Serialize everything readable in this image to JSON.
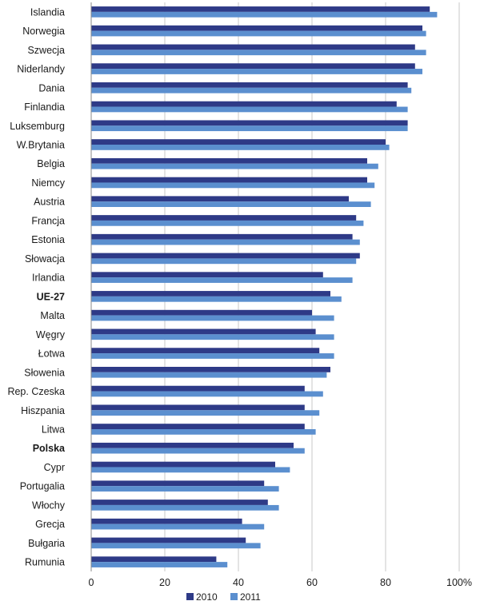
{
  "chart_data": {
    "type": "bar",
    "orientation": "horizontal",
    "title": "",
    "xlabel": "",
    "ylabel": "",
    "xlim": [
      0,
      100
    ],
    "x_ticks": [
      0,
      20,
      40,
      60,
      80,
      100
    ],
    "x_tick_labels": [
      "0",
      "20",
      "40",
      "60",
      "80",
      "100%"
    ],
    "grid": true,
    "legend_position": "bottom-center",
    "categories": [
      "Islandia",
      "Norwegia",
      "Szwecja",
      "Niderlandy",
      "Dania",
      "Finlandia",
      "Luksemburg",
      "W.Brytania",
      "Belgia",
      "Niemcy",
      "Austria",
      "Francja",
      "Estonia",
      "Słowacja",
      "Irlandia",
      "UE-27",
      "Malta",
      "Węgry",
      "Łotwa",
      "Słowenia",
      "Rep. Czeska",
      "Hiszpania",
      "Litwa",
      "Polska",
      "Cypr",
      "Portugalia",
      "Włochy",
      "Grecja",
      "Bułgaria",
      "Rumunia"
    ],
    "bold_categories": [
      "UE-27",
      "Polska"
    ],
    "series": [
      {
        "name": "2010",
        "color": "#2e3a87",
        "values": [
          92,
          90,
          88,
          88,
          86,
          83,
          86,
          80,
          75,
          75,
          70,
          72,
          71,
          73,
          63,
          65,
          60,
          61,
          62,
          65,
          58,
          58,
          58,
          55,
          50,
          47,
          48,
          41,
          42,
          34
        ]
      },
      {
        "name": "2011",
        "color": "#5b8fcf",
        "values": [
          94,
          91,
          91,
          90,
          87,
          86,
          86,
          81,
          78,
          77,
          76,
          74,
          73,
          72,
          71,
          68,
          66,
          66,
          66,
          64,
          63,
          62,
          61,
          58,
          54,
          51,
          51,
          47,
          46,
          37
        ]
      }
    ]
  }
}
